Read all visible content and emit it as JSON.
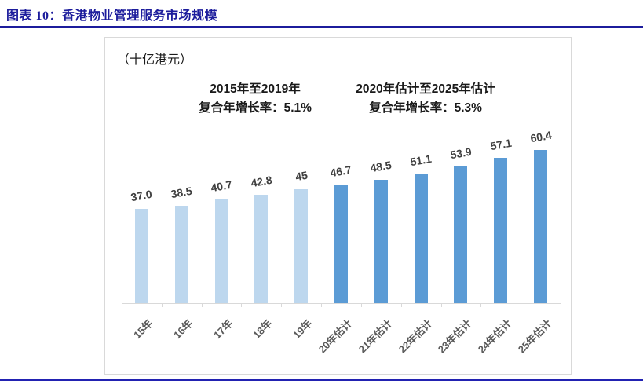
{
  "header": {
    "title": "图表 10：香港物业管理服务市场规模"
  },
  "chart": {
    "unit_label": "（十亿港元）",
    "annotations": [
      {
        "line1": "2015年至2019年",
        "line2": "复合年增长率：5.1%"
      },
      {
        "line1": "2020年估计至2025年估计",
        "line2": "复合年增长率：5.3%"
      }
    ]
  },
  "chart_data": {
    "type": "bar",
    "title": "香港物业管理服务市场规模",
    "ylabel": "十亿港元",
    "xlabel": "",
    "categories": [
      "15年",
      "16年",
      "17年",
      "18年",
      "19年",
      "20年估计",
      "21年估计",
      "22年估计",
      "23年估计",
      "24年估计",
      "25年估计"
    ],
    "values": [
      37.0,
      38.5,
      40.7,
      42.8,
      45,
      46.7,
      48.5,
      51.1,
      53.9,
      57.1,
      60.4
    ],
    "value_labels": [
      "37.0",
      "38.5",
      "40.7",
      "42.8",
      "45",
      "46.7",
      "48.5",
      "51.1",
      "53.9",
      "57.1",
      "60.4"
    ],
    "series": [
      {
        "label": "2015年至2019年",
        "cagr": "5.1%",
        "color": "#BDD7EE",
        "count": 5
      },
      {
        "label": "2020年估计至2025年估计",
        "cagr": "5.3%",
        "color": "#5B9BD5",
        "count": 6
      }
    ],
    "ylim": [
      0,
      70
    ],
    "grid": false,
    "legend": "none",
    "value_label_rotation_deg": -10,
    "x_tick_rotation_deg": -45
  },
  "colors": {
    "title_navy": "#1C1C9C",
    "bottom_rule_blue": "#2222B2",
    "bar_historical": "#BDD7EE",
    "bar_estimated": "#5B9BD5",
    "axis_line_gray": "#D9D9D9",
    "value_label_gray": "#404040",
    "x_label_gray": "#595959",
    "chart_border_gray": "#D9D9D9"
  }
}
